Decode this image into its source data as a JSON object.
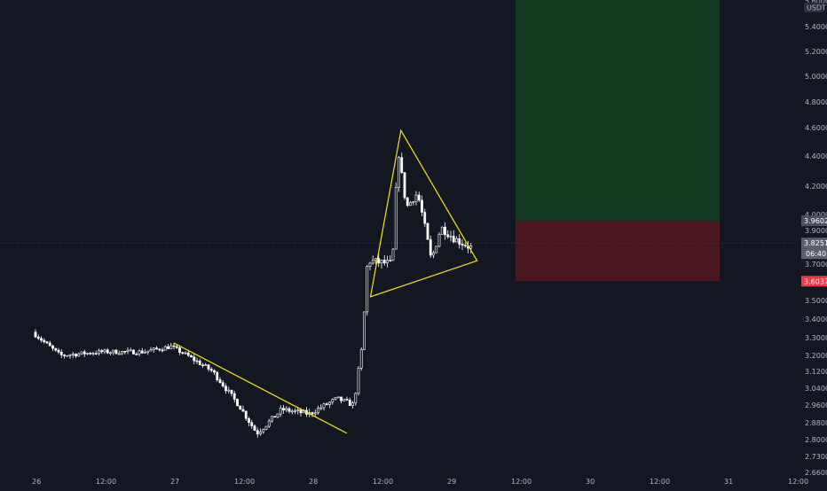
{
  "colors": {
    "background": "#131722",
    "axis_text": "#b2b5be",
    "candle_up": "#ffffff",
    "candle_down": "#ffffff",
    "trendline": "#f5e614",
    "profit_zone": "#123820",
    "loss_zone": "#4a161f",
    "entry_tag": "#4a4f5e",
    "current_tag": "#5d606b",
    "stop_tag": "#f23645"
  },
  "price_axis": {
    "currency": "USDT",
    "ticks": [
      "5.4000",
      "5.2000",
      "5.0000",
      "4.8000",
      "4.6000",
      "4.4000",
      "4.2000",
      "4.0000",
      "3.9000",
      "3.8000",
      "3.7000",
      "3.6000",
      "3.5000",
      "3.4000",
      "3.3000",
      "3.2000",
      "3.1200",
      "3.0400",
      "2.9600",
      "2.8800",
      "2.8000",
      "2.7300",
      "2.6600"
    ],
    "top_partial": "5.6000"
  },
  "time_axis": {
    "ticks": [
      "26",
      "12:00",
      "27",
      "12:00",
      "28",
      "12:00",
      "29",
      "12:00",
      "30",
      "12:00",
      "31",
      "12:00"
    ]
  },
  "price_tags": {
    "entry": {
      "value": "3.9602"
    },
    "current": {
      "value": "3.8251",
      "countdown": "06:40"
    },
    "stop": {
      "value": "3.6037"
    }
  },
  "chart_data": {
    "type": "candlestick",
    "symbol_quote": "USDT",
    "x_unit": "days",
    "ylim": [
      2.64,
      5.62
    ],
    "y_scale": "log",
    "ohlc": [],
    "annotations": {
      "descending_trendline": {
        "from": {
          "x": 27.0,
          "y": 3.27
        },
        "to": {
          "x": 28.25,
          "y": 2.83
        }
      },
      "triangle": [
        {
          "x": 28.42,
          "y": 3.52
        },
        {
          "x": 28.64,
          "y": 4.58
        },
        {
          "x": 29.19,
          "y": 3.72
        }
      ],
      "long_position": {
        "entry": 3.9602,
        "target": 5.62,
        "stop": 3.6037,
        "x_start": 29.0,
        "x_end": 30.0
      }
    }
  }
}
